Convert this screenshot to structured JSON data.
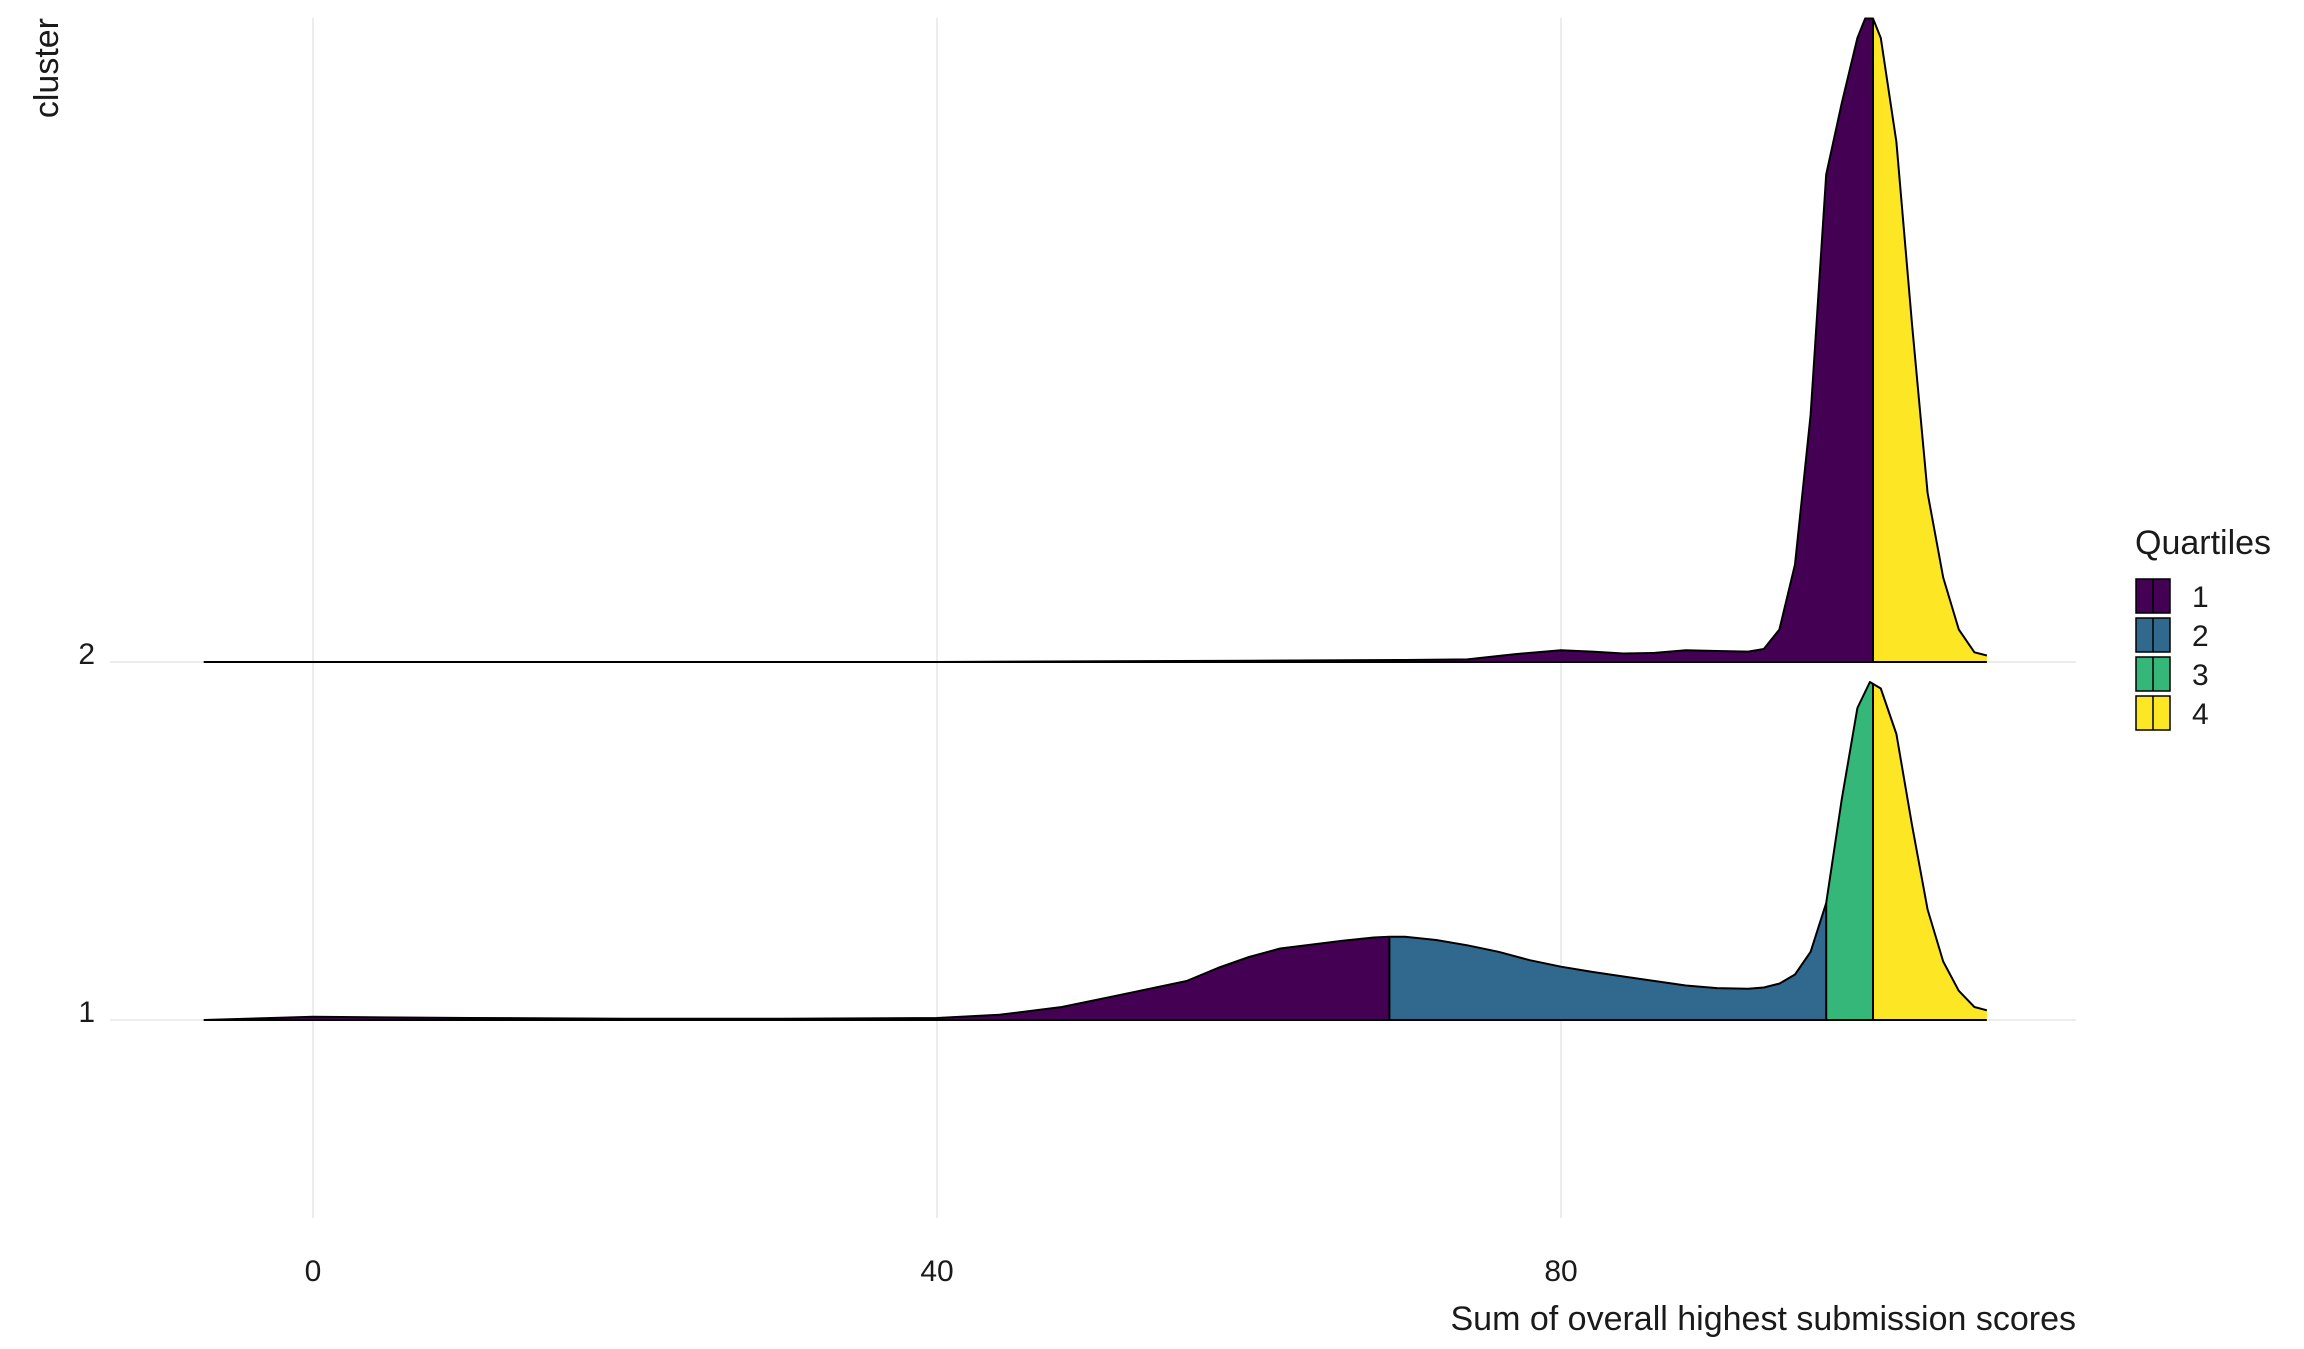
{
  "chart_data": {
    "type": "ridgeline",
    "title": "",
    "xlabel": "Sum of overall highest submission scores",
    "ylabel": "cluster",
    "xlim": [
      -20,
      113
    ],
    "x_ticks": [
      0,
      40,
      80
    ],
    "x_tick_labels": [
      "0",
      "40",
      "80"
    ],
    "y_ticks": [
      "1",
      "2"
    ],
    "grid": "vertical major lines only",
    "legend": {
      "title": "Quartiles",
      "placement": "right",
      "items": [
        {
          "label": "1",
          "color": "#440154"
        },
        {
          "label": "2",
          "color": "#31688E"
        },
        {
          "label": "3",
          "color": "#35B779"
        },
        {
          "label": "4",
          "color": "#FDE725"
        }
      ]
    },
    "series": [
      {
        "name": "1",
        "quartile_cuts": [
          69,
          97,
          100
        ],
        "density": [
          [
            -7,
            0
          ],
          [
            0,
            0.5
          ],
          [
            10,
            0.3
          ],
          [
            20,
            0.2
          ],
          [
            30,
            0.2
          ],
          [
            40,
            0.3
          ],
          [
            44,
            0.8
          ],
          [
            48,
            2
          ],
          [
            51,
            3.5
          ],
          [
            53,
            4.5
          ],
          [
            56,
            6
          ],
          [
            58,
            8
          ],
          [
            60,
            9.7
          ],
          [
            62,
            11
          ],
          [
            64,
            11.6
          ],
          [
            66,
            12.2
          ],
          [
            68,
            12.7
          ],
          [
            69,
            12.8
          ],
          [
            70,
            12.8
          ],
          [
            72,
            12.3
          ],
          [
            74,
            11.5
          ],
          [
            76,
            10.5
          ],
          [
            78,
            9.2
          ],
          [
            80,
            8.2
          ],
          [
            82,
            7.4
          ],
          [
            84,
            6.7
          ],
          [
            86,
            6
          ],
          [
            88,
            5.3
          ],
          [
            90,
            4.9
          ],
          [
            92,
            4.8
          ],
          [
            93,
            5
          ],
          [
            94,
            5.6
          ],
          [
            95,
            7
          ],
          [
            96,
            10.5
          ],
          [
            97,
            18
          ],
          [
            98,
            34
          ],
          [
            99,
            48
          ],
          [
            99.8,
            52
          ],
          [
            100.5,
            51
          ],
          [
            101.5,
            44
          ],
          [
            102.5,
            30
          ],
          [
            103.5,
            17
          ],
          [
            104.5,
            9
          ],
          [
            105.5,
            4.5
          ],
          [
            106.5,
            2
          ],
          [
            107.3,
            1.5
          ]
        ]
      },
      {
        "name": "2",
        "quartile_cuts": [
          100,
          100,
          100
        ],
        "density": [
          [
            -7,
            0
          ],
          [
            20,
            0
          ],
          [
            40,
            0
          ],
          [
            60,
            0.2
          ],
          [
            70,
            0.3
          ],
          [
            74,
            0.4
          ],
          [
            77,
            1.2
          ],
          [
            80,
            1.8
          ],
          [
            82,
            1.6
          ],
          [
            84,
            1.3
          ],
          [
            86,
            1.4
          ],
          [
            88,
            1.8
          ],
          [
            90,
            1.7
          ],
          [
            92,
            1.6
          ],
          [
            93,
            2
          ],
          [
            94,
            5
          ],
          [
            95,
            15
          ],
          [
            96,
            38
          ],
          [
            97,
            75
          ],
          [
            98,
            86
          ],
          [
            99,
            96
          ],
          [
            99.5,
            99
          ],
          [
            100,
            99
          ],
          [
            100.5,
            96
          ],
          [
            101.5,
            80
          ],
          [
            102.5,
            52
          ],
          [
            103.5,
            26
          ],
          [
            104.5,
            13
          ],
          [
            105.5,
            5
          ],
          [
            106.5,
            1.5
          ],
          [
            107.3,
            1
          ]
        ]
      }
    ]
  }
}
